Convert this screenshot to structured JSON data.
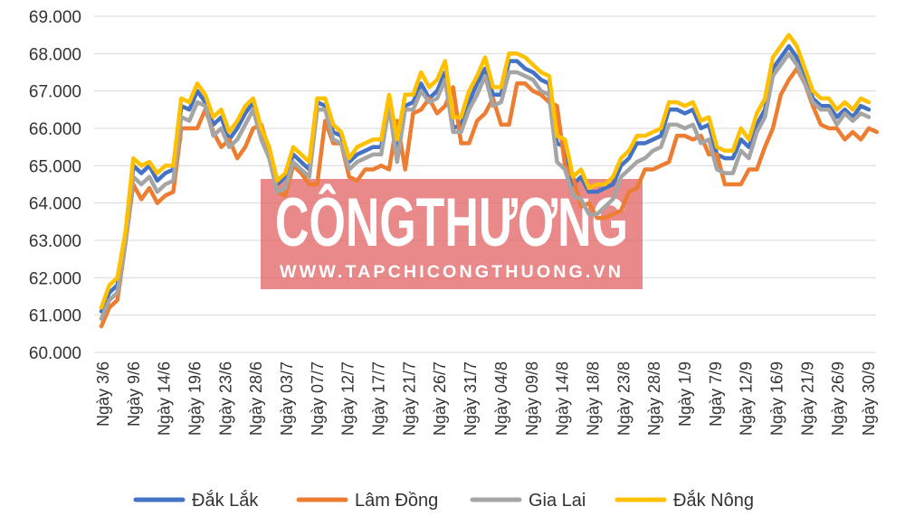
{
  "watermark": {
    "brand": "CÔNGTHƯƠNG",
    "url": "WWW.TAPCHICONGTHUONG.VN",
    "color": "#e05c5c"
  },
  "chart_data": {
    "type": "line",
    "title": "",
    "xlabel": "",
    "ylabel": "",
    "ylim": [
      60000,
      69000
    ],
    "yticks": [
      "60.000",
      "61.000",
      "62.000",
      "63.000",
      "64.000",
      "65.000",
      "66.000",
      "67.000",
      "68.000",
      "69.000"
    ],
    "grid": true,
    "legend_position": "bottom",
    "x_tick_labels": [
      "Ngày 3/6",
      "Ngày 9/6",
      "Ngày 14/6",
      "Ngày 19/6",
      "Ngày 23/6",
      "Ngày 28/6",
      "Ngày 03/7",
      "Ngày 07/7",
      "Ngày 12/7",
      "Ngày 17/7",
      "Ngày 21/7",
      "Ngày 26/7",
      "Ngày 31/7",
      "Ngày 04/8",
      "Ngày 09/8",
      "Ngày 14/8",
      "Ngày 18/8",
      "Ngày 23/8",
      "Ngày 28/8",
      "Ngày 1/9",
      "Ngày 7/9",
      "Ngày 12/9",
      "Ngày 16/9",
      "Ngày 21/9",
      "Ngày 26/9",
      "Ngày 30/9"
    ],
    "series": [
      {
        "name": "Đắk Lắk",
        "color": "#4472c4",
        "values": [
          61100,
          61600,
          61800,
          63000,
          65000,
          64800,
          65000,
          64600,
          64800,
          64900,
          66600,
          66500,
          67000,
          66700,
          66100,
          66300,
          65700,
          66000,
          66400,
          66700,
          65900,
          65400,
          64500,
          64700,
          65300,
          65100,
          64900,
          66700,
          66600,
          65900,
          65800,
          65100,
          65300,
          65400,
          65500,
          65500,
          66800,
          65300,
          66600,
          66700,
          67200,
          66800,
          67000,
          67500,
          66000,
          66100,
          66700,
          67200,
          67600,
          66900,
          66900,
          67800,
          67800,
          67600,
          67500,
          67300,
          67200,
          65600,
          65500,
          64500,
          64700,
          64300,
          64300,
          64400,
          64500,
          65000,
          65200,
          65600,
          65600,
          65700,
          65800,
          66500,
          66500,
          66400,
          66500,
          66000,
          66100,
          65300,
          65200,
          65200,
          65700,
          65500,
          66100,
          66500,
          67600,
          67900,
          68200,
          67900,
          67400,
          66800,
          66600,
          66600,
          66300,
          66500,
          66300,
          66600,
          66500
        ]
      },
      {
        "name": "Lâm Đồng",
        "color": "#ed7d31",
        "values": [
          60700,
          61200,
          61400,
          62900,
          64500,
          64100,
          64400,
          64000,
          64200,
          64300,
          66000,
          66000,
          66000,
          66500,
          65900,
          65500,
          65700,
          65200,
          65500,
          66000,
          66100,
          65400,
          64300,
          64200,
          65000,
          64800,
          64500,
          64500,
          66200,
          65600,
          65600,
          64700,
          64600,
          64900,
          64900,
          65000,
          64900,
          66200,
          64900,
          66400,
          66500,
          66800,
          66400,
          66600,
          67100,
          65600,
          65600,
          66200,
          66400,
          66800,
          66100,
          66100,
          67200,
          67200,
          67000,
          66900,
          66700,
          66600,
          65000,
          64700,
          63900,
          64000,
          63600,
          63600,
          63700,
          63800,
          64300,
          64400,
          64900,
          64900,
          65000,
          65100,
          65800,
          65800,
          65700,
          65800,
          65300,
          65300,
          64500,
          64500,
          64500,
          64900,
          64900,
          65500,
          66000,
          66900,
          67300,
          67600,
          67200,
          66600,
          66100,
          66000,
          66000,
          65700,
          65900,
          65700,
          66000,
          65900
        ]
      },
      {
        "name": "Gia Lai",
        "color": "#a5a5a5",
        "values": [
          60900,
          61400,
          61600,
          62900,
          64700,
          64500,
          64700,
          64300,
          64500,
          64600,
          66300,
          66200,
          66700,
          66600,
          65800,
          66000,
          65500,
          65700,
          66100,
          66500,
          65700,
          65200,
          64300,
          64400,
          65100,
          64900,
          64700,
          66500,
          66500,
          65700,
          65600,
          64900,
          65100,
          65200,
          65300,
          65300,
          66600,
          65100,
          66500,
          66500,
          67000,
          66700,
          66800,
          67300,
          65900,
          65900,
          66500,
          66900,
          67400,
          66600,
          66700,
          67500,
          67500,
          67400,
          67300,
          67000,
          66900,
          65100,
          64900,
          64200,
          64100,
          63700,
          63700,
          63900,
          64100,
          64700,
          64900,
          65100,
          65200,
          65400,
          65500,
          66100,
          66100,
          66000,
          66100,
          65600,
          65700,
          64900,
          64800,
          64800,
          65400,
          65200,
          65900,
          66300,
          67400,
          67700,
          68000,
          67700,
          67200,
          66700,
          66500,
          66500,
          66100,
          66400,
          66200,
          66400,
          66300
        ]
      },
      {
        "name": "Đắk Nông",
        "color": "#ffc000",
        "values": [
          61200,
          61800,
          62000,
          63200,
          65200,
          65000,
          65100,
          64800,
          65000,
          65000,
          66800,
          66700,
          67200,
          66900,
          66300,
          66500,
          65900,
          66200,
          66600,
          66800,
          66000,
          65500,
          64600,
          64800,
          65500,
          65300,
          65100,
          66800,
          66800,
          66100,
          65900,
          65200,
          65500,
          65600,
          65700,
          65700,
          66900,
          65700,
          66900,
          66900,
          67500,
          67100,
          67300,
          67800,
          66300,
          66300,
          67000,
          67400,
          67900,
          67100,
          67100,
          68000,
          68000,
          67900,
          67700,
          67500,
          67400,
          65800,
          65700,
          64700,
          64900,
          64400,
          64500,
          64500,
          64700,
          65200,
          65400,
          65800,
          65800,
          65900,
          66000,
          66700,
          66700,
          66600,
          66700,
          66200,
          66300,
          65500,
          65400,
          65400,
          66000,
          65700,
          66400,
          66800,
          67900,
          68200,
          68500,
          68200,
          67600,
          67000,
          66800,
          66800,
          66500,
          66700,
          66500,
          66800,
          66700
        ]
      }
    ]
  }
}
